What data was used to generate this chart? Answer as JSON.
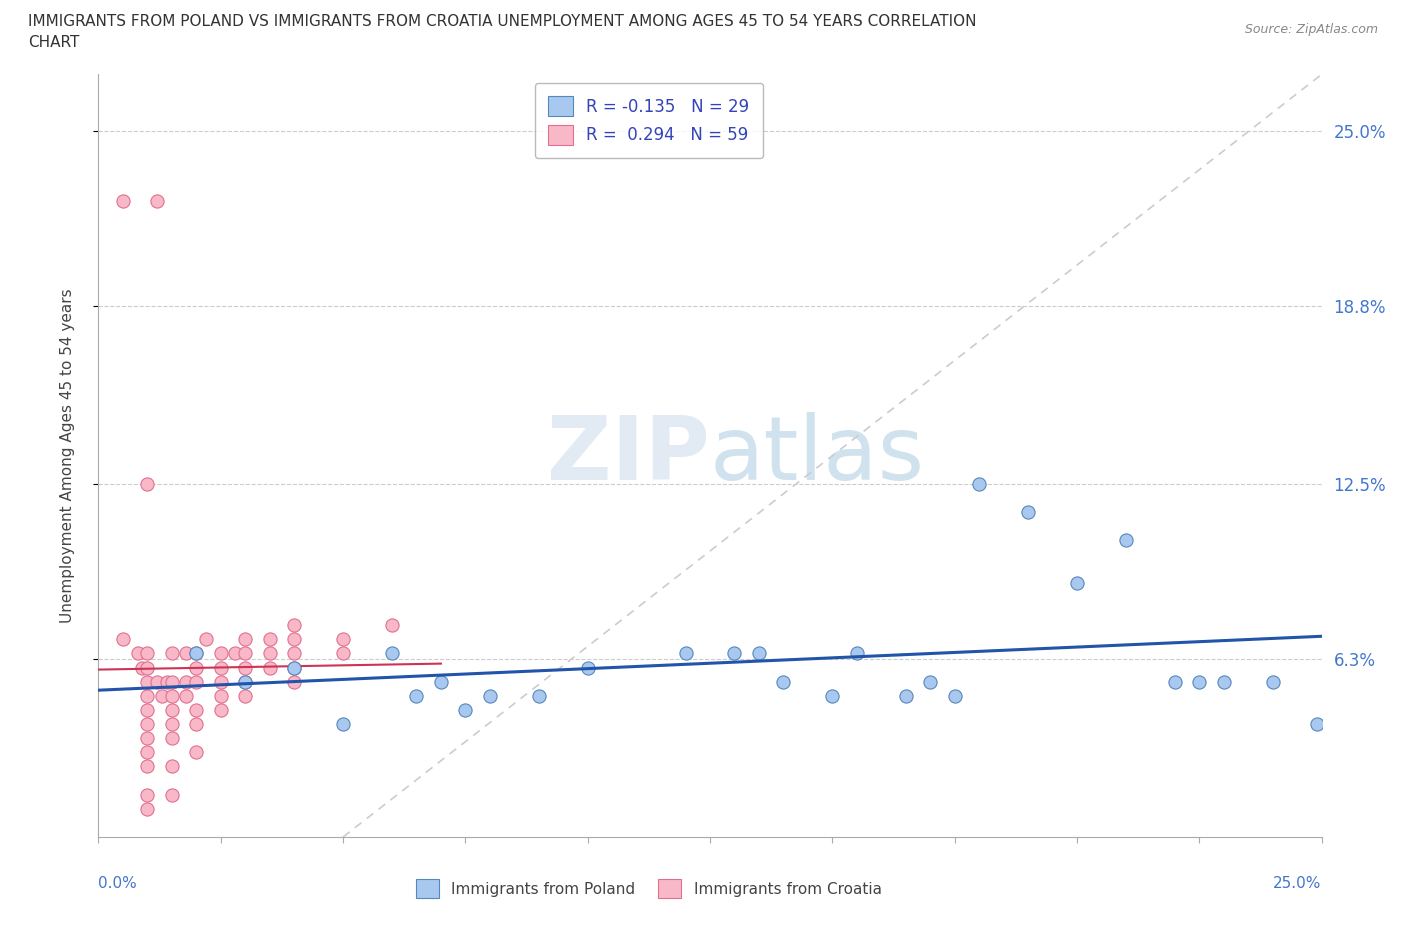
{
  "title_line1": "IMMIGRANTS FROM POLAND VS IMMIGRANTS FROM CROATIA UNEMPLOYMENT AMONG AGES 45 TO 54 YEARS CORRELATION",
  "title_line2": "CHART",
  "source_text": "Source: ZipAtlas.com",
  "ylabel": "Unemployment Among Ages 45 to 54 years",
  "ytick_vals": [
    0.063,
    0.125,
    0.188,
    0.25
  ],
  "ytick_labels": [
    "6.3%",
    "12.5%",
    "18.8%",
    "25.0%"
  ],
  "xmin": 0.0,
  "xmax": 0.25,
  "ymin": 0.0,
  "ymax": 0.27,
  "poland_color": "#a8c8f0",
  "poland_edge": "#5588bb",
  "croatia_color": "#f8b8c8",
  "croatia_edge": "#e07090",
  "trend_poland_color": "#2255aa",
  "trend_croatia_color": "#ddbbcc",
  "trend_croatia_short_color": "#cc4455",
  "poland_scatter": [
    [
      0.02,
      0.065
    ],
    [
      0.03,
      0.055
    ],
    [
      0.04,
      0.06
    ],
    [
      0.05,
      0.04
    ],
    [
      0.06,
      0.065
    ],
    [
      0.065,
      0.05
    ],
    [
      0.07,
      0.055
    ],
    [
      0.075,
      0.045
    ],
    [
      0.08,
      0.05
    ],
    [
      0.09,
      0.05
    ],
    [
      0.1,
      0.06
    ],
    [
      0.12,
      0.065
    ],
    [
      0.13,
      0.065
    ],
    [
      0.135,
      0.065
    ],
    [
      0.14,
      0.055
    ],
    [
      0.15,
      0.05
    ],
    [
      0.155,
      0.065
    ],
    [
      0.165,
      0.05
    ],
    [
      0.17,
      0.055
    ],
    [
      0.175,
      0.05
    ],
    [
      0.18,
      0.125
    ],
    [
      0.19,
      0.115
    ],
    [
      0.2,
      0.09
    ],
    [
      0.21,
      0.105
    ],
    [
      0.22,
      0.055
    ],
    [
      0.225,
      0.055
    ],
    [
      0.23,
      0.055
    ],
    [
      0.24,
      0.055
    ],
    [
      0.249,
      0.04
    ]
  ],
  "croatia_scatter": [
    [
      0.005,
      0.225
    ],
    [
      0.012,
      0.225
    ],
    [
      0.01,
      0.125
    ],
    [
      0.005,
      0.07
    ],
    [
      0.008,
      0.065
    ],
    [
      0.009,
      0.06
    ],
    [
      0.01,
      0.065
    ],
    [
      0.01,
      0.06
    ],
    [
      0.01,
      0.055
    ],
    [
      0.01,
      0.05
    ],
    [
      0.01,
      0.045
    ],
    [
      0.01,
      0.04
    ],
    [
      0.01,
      0.035
    ],
    [
      0.01,
      0.03
    ],
    [
      0.01,
      0.025
    ],
    [
      0.01,
      0.015
    ],
    [
      0.01,
      0.01
    ],
    [
      0.012,
      0.055
    ],
    [
      0.013,
      0.05
    ],
    [
      0.014,
      0.055
    ],
    [
      0.015,
      0.065
    ],
    [
      0.015,
      0.055
    ],
    [
      0.015,
      0.05
    ],
    [
      0.015,
      0.045
    ],
    [
      0.015,
      0.04
    ],
    [
      0.015,
      0.035
    ],
    [
      0.015,
      0.025
    ],
    [
      0.015,
      0.015
    ],
    [
      0.018,
      0.065
    ],
    [
      0.018,
      0.055
    ],
    [
      0.018,
      0.05
    ],
    [
      0.02,
      0.065
    ],
    [
      0.02,
      0.06
    ],
    [
      0.02,
      0.055
    ],
    [
      0.02,
      0.045
    ],
    [
      0.02,
      0.04
    ],
    [
      0.02,
      0.03
    ],
    [
      0.022,
      0.07
    ],
    [
      0.025,
      0.065
    ],
    [
      0.025,
      0.06
    ],
    [
      0.025,
      0.055
    ],
    [
      0.025,
      0.05
    ],
    [
      0.025,
      0.045
    ],
    [
      0.028,
      0.065
    ],
    [
      0.03,
      0.07
    ],
    [
      0.03,
      0.065
    ],
    [
      0.03,
      0.06
    ],
    [
      0.03,
      0.055
    ],
    [
      0.03,
      0.05
    ],
    [
      0.035,
      0.07
    ],
    [
      0.035,
      0.065
    ],
    [
      0.035,
      0.06
    ],
    [
      0.04,
      0.075
    ],
    [
      0.04,
      0.07
    ],
    [
      0.04,
      0.065
    ],
    [
      0.04,
      0.06
    ],
    [
      0.04,
      0.055
    ],
    [
      0.05,
      0.07
    ],
    [
      0.05,
      0.065
    ],
    [
      0.06,
      0.075
    ]
  ]
}
